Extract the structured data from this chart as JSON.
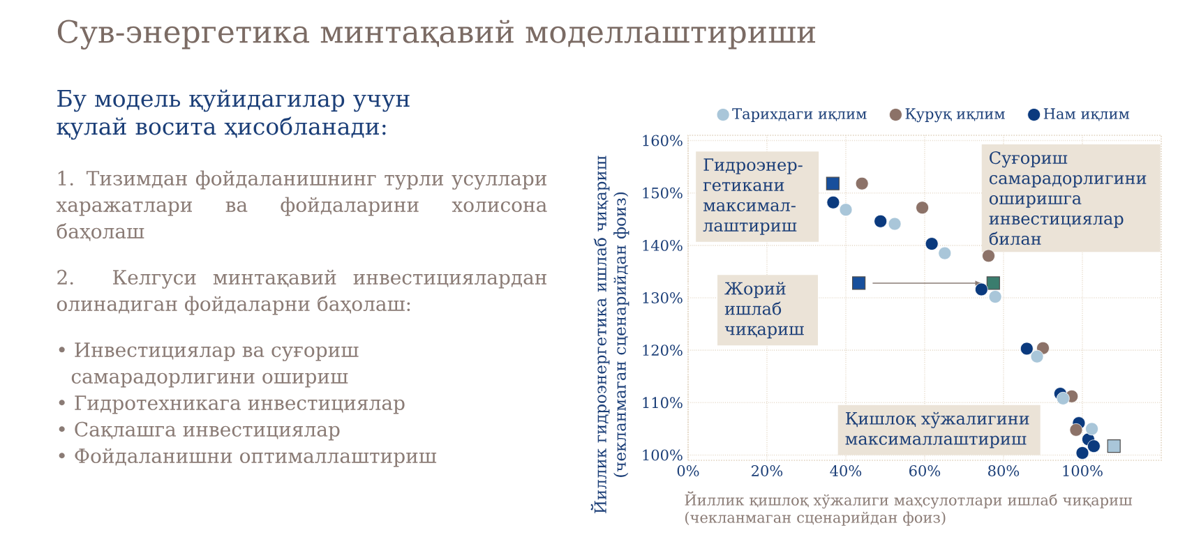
{
  "chart_data": {
    "type": "scatter",
    "title": "Сув-энергетика минтақавий моделлаштириши",
    "subtitle": "Бу модель қуйидагилар учун қулай восита ҳисобланади:",
    "xlabel": "Йиллик қишлоқ хўжалиги маҳсулотлари ишлаб чиқариш (чекланмаган сценарийдан фоиз)",
    "ylabel": "Йиллик гидроэнергетика ишлаб чиқариш (чекланмаган сценарийдан фоиз)",
    "xlim": [
      0,
      120
    ],
    "ylim": [
      99,
      161
    ],
    "xticks": [
      {
        "value": 0,
        "label": "0%"
      },
      {
        "value": 20,
        "label": "20%"
      },
      {
        "value": 40,
        "label": "40%"
      },
      {
        "value": 60,
        "label": "60%"
      },
      {
        "value": 80,
        "label": "80%"
      },
      {
        "value": 100,
        "label": "100%"
      }
    ],
    "yticks": [
      {
        "value": 100,
        "label": "100%"
      },
      {
        "value": 110,
        "label": "110%"
      },
      {
        "value": 120,
        "label": "120%"
      },
      {
        "value": 130,
        "label": "130%"
      },
      {
        "value": 140,
        "label": "140%"
      },
      {
        "value": 150,
        "label": "150%"
      },
      {
        "value": 160,
        "label": "160%"
      }
    ],
    "grid": true,
    "legend": "top",
    "series": [
      {
        "marker": "square",
        "x": [
          36.7,
          43.3,
          77.4,
          108
        ],
        "values": [
          151.8,
          132.8,
          132.8,
          101.7
        ],
        "colors": [
          "#174f9c",
          "#174f9c",
          "#3a7d6e",
          "#a9c6d9"
        ]
      },
      {
        "name": "Тарихдаги иқлим",
        "marker": "circle",
        "color": "#a9c6d9",
        "x": [
          40,
          52.4,
          65.1,
          77.9,
          88.5,
          95.1,
          102.4
        ],
        "values": [
          146.8,
          144.1,
          138.5,
          130.2,
          118.8,
          110.8,
          105
        ]
      },
      {
        "name": "Қуруқ иқлим",
        "marker": "circle",
        "color": "#8c7268",
        "x": [
          44.1,
          59.4,
          76.2,
          90,
          97.3,
          98.4
        ],
        "values": [
          151.8,
          147.2,
          138,
          120.4,
          111.2,
          104.8
        ]
      },
      {
        "name": "Нам иқлим",
        "marker": "circle",
        "color": "#0b3a7e",
        "x": [
          36.8,
          48.8,
          61.8,
          74.4,
          85.9,
          94.4,
          99.1,
          101.5,
          102.9,
          100
        ],
        "values": [
          148.2,
          144.6,
          140.3,
          131.6,
          120.3,
          111.7,
          106.1,
          103,
          101.7,
          100.4
        ]
      }
    ],
    "annotations": [
      "1. Тизимдан фойдаланишнинг турли усуллари харажатлари ва фойдаларини холисона баҳолаш",
      "2. Келгуси минтақавий инвестициялардан олинадиган фойдаларни баҳолаш:",
      "• Инвестициялар ва суғориш самарадорлигини ошириш",
      "• Гидротехникага инвестициялар",
      "• Сақлашга инвестициялар",
      "• Фойдаланишни оптималлаштириш",
      {
        "text": "Гидроэнер-гетикани максимал-лаштириш",
        "x": 36.7,
        "y": 151.8
      },
      {
        "text": "Суғориш самарадорлигини оширишга инвестициялар билан",
        "x": 77.4,
        "y": 132.8
      },
      "Жорий ишлаб чиқариш",
      "Қишлоқ хўжалигини максималлаштириш"
    ]
  }
}
